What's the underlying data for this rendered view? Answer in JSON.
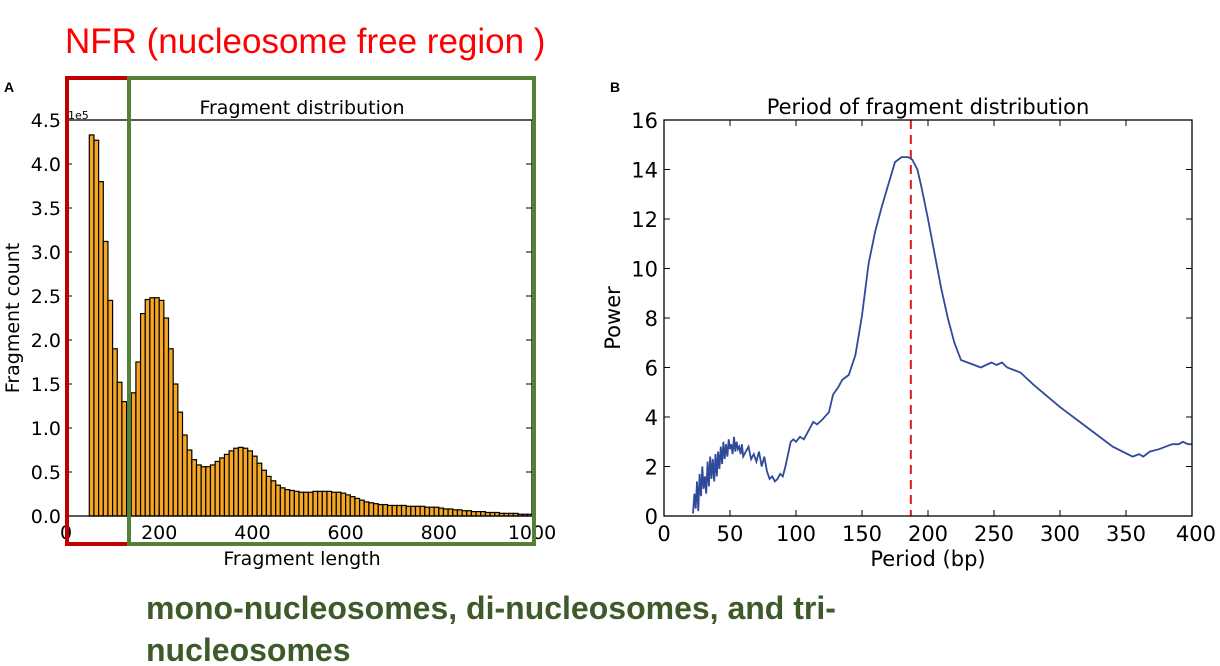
{
  "header": {
    "nfr_label": "NFR (nucleosome free region )",
    "nfr_color": "#ff0000",
    "bottom_label_line1": "mono-nucleosomes, di-nucleosomes, and tri-",
    "bottom_label_line2": "nucleosomes",
    "bottom_color": "#3f5a2a",
    "box_red": "#c00000",
    "box_green": "#538135"
  },
  "chart_data": [
    {
      "panel_label": "A",
      "type": "bar",
      "title": "Fragment distribution",
      "xlabel": "Fragment length",
      "ylabel": "Fragment count",
      "scale_label": "1e5",
      "xlim": [
        0,
        1000
      ],
      "ylim": [
        0,
        4.5
      ],
      "xticks": [
        "0",
        "200",
        "400",
        "600",
        "800",
        "1000"
      ],
      "yticks": [
        "0.0",
        "0.5",
        "1.0",
        "1.5",
        "2.0",
        "2.5",
        "3.0",
        "3.5",
        "4.0",
        "4.5"
      ],
      "bar_color": "#f5a623",
      "bin_width": 10,
      "bin_starts": [
        50,
        60,
        70,
        80,
        90,
        100,
        110,
        120,
        130,
        140,
        150,
        160,
        170,
        180,
        190,
        200,
        210,
        220,
        230,
        240,
        250,
        260,
        270,
        280,
        290,
        300,
        310,
        320,
        330,
        340,
        350,
        360,
        370,
        380,
        390,
        400,
        410,
        420,
        430,
        440,
        450,
        460,
        470,
        480,
        490,
        500,
        510,
        520,
        530,
        540,
        550,
        560,
        570,
        580,
        590,
        600,
        610,
        620,
        630,
        640,
        650,
        660,
        670,
        680,
        690,
        700,
        710,
        720,
        730,
        740,
        750,
        760,
        770,
        780,
        790,
        800,
        810,
        820,
        830,
        840,
        850,
        860,
        870,
        880,
        890,
        900,
        910,
        920,
        930,
        940,
        950,
        960,
        970,
        980,
        990
      ],
      "values": [
        4.33,
        4.27,
        3.8,
        3.12,
        2.45,
        1.9,
        1.52,
        1.3,
        1.25,
        1.4,
        1.75,
        2.3,
        2.46,
        2.48,
        2.48,
        2.45,
        2.25,
        1.9,
        1.5,
        1.18,
        0.92,
        0.75,
        0.64,
        0.58,
        0.56,
        0.56,
        0.58,
        0.62,
        0.66,
        0.7,
        0.74,
        0.77,
        0.78,
        0.77,
        0.74,
        0.68,
        0.6,
        0.52,
        0.45,
        0.4,
        0.35,
        0.32,
        0.3,
        0.29,
        0.28,
        0.27,
        0.27,
        0.27,
        0.28,
        0.28,
        0.28,
        0.28,
        0.27,
        0.27,
        0.26,
        0.24,
        0.22,
        0.2,
        0.18,
        0.16,
        0.15,
        0.14,
        0.13,
        0.13,
        0.12,
        0.12,
        0.12,
        0.12,
        0.11,
        0.11,
        0.11,
        0.11,
        0.1,
        0.1,
        0.1,
        0.09,
        0.08,
        0.08,
        0.07,
        0.07,
        0.06,
        0.06,
        0.05,
        0.05,
        0.05,
        0.04,
        0.04,
        0.04,
        0.03,
        0.03,
        0.03,
        0.03,
        0.02,
        0.02,
        0.02
      ]
    },
    {
      "panel_label": "B",
      "type": "line",
      "title": "Period of fragment distribution",
      "xlabel": "Period (bp)",
      "ylabel": "Power",
      "xlim": [
        0,
        400
      ],
      "ylim": [
        0,
        16
      ],
      "xticks": [
        "0",
        "50",
        "100",
        "150",
        "200",
        "250",
        "300",
        "350",
        "400"
      ],
      "yticks": [
        "0",
        "2",
        "4",
        "6",
        "8",
        "10",
        "12",
        "14",
        "16"
      ],
      "line_color": "#2f4a9a",
      "marker_color": "#e41a1c",
      "marker_x": 187,
      "x": [
        22,
        23,
        24,
        25,
        26,
        27,
        28,
        29,
        30,
        31,
        32,
        33,
        34,
        35,
        36,
        37,
        38,
        39,
        40,
        41,
        42,
        43,
        44,
        45,
        46,
        47,
        48,
        49,
        50,
        51,
        52,
        53,
        54,
        55,
        56,
        57,
        58,
        59,
        60,
        62,
        64,
        66,
        68,
        70,
        72,
        74,
        76,
        78,
        80,
        82,
        84,
        86,
        88,
        90,
        92,
        94,
        96,
        98,
        100,
        103,
        106,
        110,
        113,
        116,
        120,
        125,
        128,
        132,
        135,
        140,
        145,
        150,
        155,
        160,
        165,
        170,
        175,
        180,
        185,
        188,
        192,
        195,
        200,
        205,
        210,
        215,
        220,
        225,
        230,
        240,
        244,
        248,
        252,
        256,
        260,
        265,
        270,
        280,
        300,
        320,
        340,
        355,
        360,
        363,
        368,
        375,
        380,
        385,
        390,
        393,
        397,
        400
      ],
      "values": [
        0.1,
        0.9,
        0.3,
        1.4,
        0.2,
        1.7,
        0.8,
        2.0,
        1.1,
        1.6,
        0.9,
        2.2,
        1.2,
        2.4,
        1.5,
        2.3,
        1.4,
        2.5,
        1.6,
        2.6,
        1.9,
        2.8,
        2.1,
        3.0,
        2.3,
        2.9,
        2.4,
        3.1,
        2.7,
        2.9,
        2.5,
        3.2,
        2.6,
        3.0,
        2.7,
        2.8,
        2.5,
        2.9,
        2.4,
        2.6,
        2.8,
        2.3,
        2.5,
        2.2,
        2.6,
        2.0,
        2.4,
        1.8,
        1.5,
        1.6,
        1.4,
        1.5,
        1.7,
        1.6,
        2.0,
        2.5,
        3.0,
        3.1,
        3.0,
        3.2,
        3.1,
        3.5,
        3.8,
        3.7,
        3.9,
        4.2,
        4.9,
        5.2,
        5.5,
        5.7,
        6.5,
        8.1,
        10.2,
        11.5,
        12.5,
        13.4,
        14.3,
        14.5,
        14.5,
        14.4,
        14.0,
        13.3,
        12.0,
        10.6,
        9.2,
        8.0,
        7.0,
        6.3,
        6.2,
        6.0,
        6.1,
        6.2,
        6.1,
        6.2,
        6.0,
        5.9,
        5.8,
        5.3,
        4.4,
        3.6,
        2.8,
        2.4,
        2.5,
        2.4,
        2.6,
        2.7,
        2.8,
        2.9,
        2.9,
        3.0,
        2.9,
        2.9
      ]
    }
  ]
}
